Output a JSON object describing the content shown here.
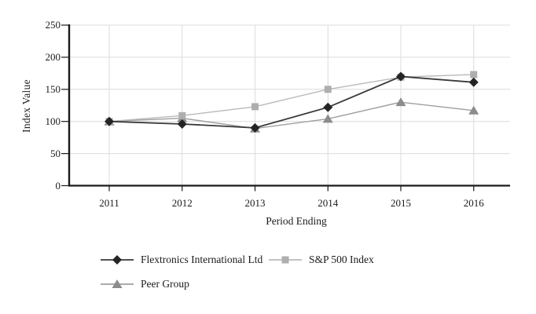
{
  "chart_data": {
    "type": "line",
    "title": "",
    "xlabel": "Period Ending",
    "ylabel": "Index Value",
    "categories": [
      "2011",
      "2012",
      "2013",
      "2014",
      "2015",
      "2016"
    ],
    "ylim": [
      0,
      250
    ],
    "yticks": [
      0,
      50,
      100,
      150,
      200,
      250
    ],
    "grid": true,
    "legend_position": "below-left-two-rows",
    "axis_color": "#1a1a1a",
    "grid_color": "#dcdcdc",
    "series": [
      {
        "name": "Flextronics International Ltd",
        "marker": "diamond",
        "line_color": "#3a3a3a",
        "marker_color": "#242424",
        "values": [
          100,
          96,
          90,
          122,
          170,
          161
        ]
      },
      {
        "name": "S&P 500 Index",
        "marker": "square",
        "line_color": "#b9b9b9",
        "marker_color": "#aeaeae",
        "values": [
          100,
          109,
          123,
          150,
          169,
          173
        ]
      },
      {
        "name": "Peer Group",
        "marker": "triangle",
        "line_color": "#9e9e9e",
        "marker_color": "#8c8c8c",
        "values": [
          100,
          105,
          89,
          104,
          130,
          117
        ]
      }
    ]
  }
}
